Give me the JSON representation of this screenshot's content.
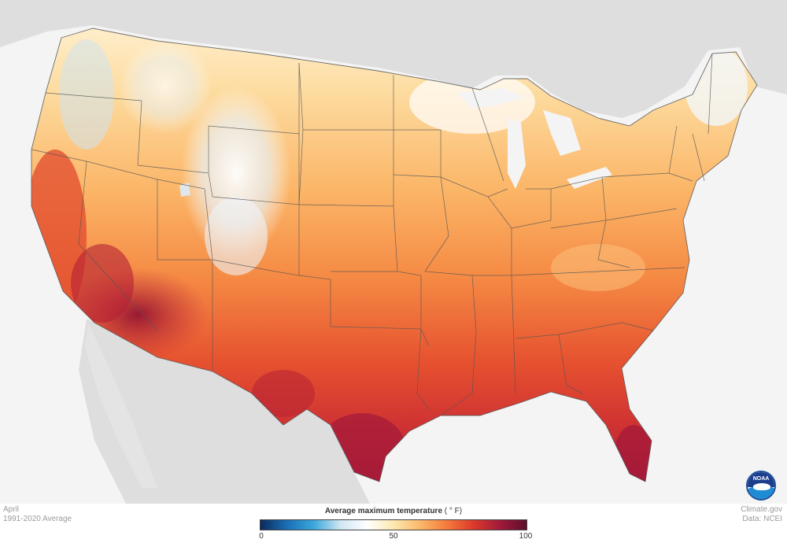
{
  "map": {
    "period_month": "April",
    "period_norm": "1991-2020 Average",
    "credit_site": "Climate.gov",
    "credit_data": "Data: NCEI",
    "logo_text": "NOAA"
  },
  "legend": {
    "title": "Average maximum temperature",
    "unit": "( ° F)",
    "ticks": [
      "0",
      "50",
      "100"
    ],
    "min": 0,
    "max": 100,
    "colors": [
      "#0b2a5c",
      "#1a6fb5",
      "#3aa7dd",
      "#cfe6f3",
      "#ffffff",
      "#fde8b0",
      "#fbb86a",
      "#f57b3c",
      "#dc3a2a",
      "#a11a3a",
      "#5e0d2c"
    ]
  },
  "colors": {
    "land_background": "#dcdcdc",
    "ocean": "#f4f4f4",
    "state_borders": "#555555"
  }
}
